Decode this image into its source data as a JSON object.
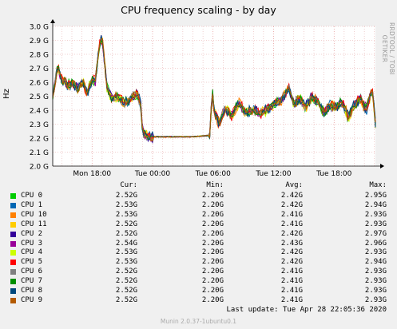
{
  "title": "CPU frequency scaling - by day",
  "side_credit": "RRDTOOL / TOBI OETIKER",
  "footer": {
    "last_update": "Last update: Tue Apr 28 22:05:36 2020",
    "munin": "Munin 2.0.37-1ubuntu0.1"
  },
  "legend": {
    "headers": {
      "cur": "Cur:",
      "min": "Min:",
      "avg": "Avg:",
      "max": "Max:"
    },
    "rows": [
      {
        "name": "CPU 0",
        "color": "#00cc00",
        "cur": "2.52G",
        "min": "2.20G",
        "avg": "2.42G",
        "max": "2.95G"
      },
      {
        "name": "CPU 1",
        "color": "#0066b3",
        "cur": "2.53G",
        "min": "2.20G",
        "avg": "2.42G",
        "max": "2.94G"
      },
      {
        "name": "CPU 10",
        "color": "#ff8000",
        "cur": "2.53G",
        "min": "2.20G",
        "avg": "2.41G",
        "max": "2.93G"
      },
      {
        "name": "CPU 11",
        "color": "#ffcc00",
        "cur": "2.52G",
        "min": "2.20G",
        "avg": "2.41G",
        "max": "2.93G"
      },
      {
        "name": "CPU 2",
        "color": "#330099",
        "cur": "2.52G",
        "min": "2.20G",
        "avg": "2.42G",
        "max": "2.97G"
      },
      {
        "name": "CPU 3",
        "color": "#990099",
        "cur": "2.54G",
        "min": "2.20G",
        "avg": "2.43G",
        "max": "2.96G"
      },
      {
        "name": "CPU 4",
        "color": "#ccff00",
        "cur": "2.53G",
        "min": "2.20G",
        "avg": "2.42G",
        "max": "2.93G"
      },
      {
        "name": "CPU 5",
        "color": "#ff0000",
        "cur": "2.53G",
        "min": "2.20G",
        "avg": "2.42G",
        "max": "2.94G"
      },
      {
        "name": "CPU 6",
        "color": "#808080",
        "cur": "2.52G",
        "min": "2.20G",
        "avg": "2.41G",
        "max": "2.93G"
      },
      {
        "name": "CPU 7",
        "color": "#008f00",
        "cur": "2.52G",
        "min": "2.20G",
        "avg": "2.41G",
        "max": "2.93G"
      },
      {
        "name": "CPU 8",
        "color": "#00487d",
        "cur": "2.52G",
        "min": "2.20G",
        "avg": "2.41G",
        "max": "2.93G"
      },
      {
        "name": "CPU 9",
        "color": "#b35a00",
        "cur": "2.52G",
        "min": "2.20G",
        "avg": "2.41G",
        "max": "2.93G"
      }
    ]
  },
  "chart_data": {
    "type": "line",
    "title": "CPU frequency scaling - by day",
    "ylabel": "Hz",
    "xlabel": "",
    "ylim": [
      2.0,
      3.0
    ],
    "y_unit": "G",
    "y_ticks": [
      "2.0 G",
      "2.1 G",
      "2.2 G",
      "2.3 G",
      "2.4 G",
      "2.5 G",
      "2.6 G",
      "2.7 G",
      "2.8 G",
      "2.9 G",
      "3.0 G"
    ],
    "x_ticks": [
      "Mon 18:00",
      "Tue 00:00",
      "Tue 06:00",
      "Tue 12:00",
      "Tue 18:00"
    ],
    "x_tick_hours": [
      18,
      24,
      30,
      36,
      42
    ],
    "xlim_hours": [
      14.1,
      46.1
    ],
    "grid": true,
    "legend_position": "bottom",
    "line_colors": [
      "#00cc00",
      "#0066b3",
      "#ff8000",
      "#ffcc00",
      "#330099",
      "#990099",
      "#ccff00",
      "#ff0000",
      "#808080",
      "#008f00",
      "#00487d",
      "#b35a00"
    ],
    "composite_x_hours": [
      14.1,
      14.6,
      15.0,
      15.6,
      16.0,
      16.6,
      17.1,
      17.5,
      18.0,
      18.3,
      18.7,
      19.0,
      19.5,
      20.0,
      20.6,
      21.2,
      21.8,
      22.4,
      22.8,
      23.0,
      23.4,
      24.0,
      26.0,
      28.0,
      29.7,
      29.9,
      30.1,
      30.6,
      31.2,
      31.8,
      32.6,
      33.2,
      34.0,
      34.8,
      35.6,
      36.2,
      36.8,
      37.5,
      38.0,
      38.6,
      39.2,
      39.8,
      40.4,
      41.0,
      41.6,
      42.2,
      42.8,
      43.4,
      44.0,
      44.6,
      45.2,
      45.8,
      46.1
    ],
    "composite_values": [
      2.5,
      2.72,
      2.62,
      2.58,
      2.6,
      2.55,
      2.6,
      2.52,
      2.62,
      2.6,
      2.85,
      2.92,
      2.55,
      2.48,
      2.5,
      2.45,
      2.48,
      2.52,
      2.46,
      2.25,
      2.22,
      2.21,
      2.21,
      2.21,
      2.22,
      2.56,
      2.4,
      2.3,
      2.42,
      2.36,
      2.45,
      2.38,
      2.4,
      2.38,
      2.42,
      2.45,
      2.48,
      2.56,
      2.45,
      2.48,
      2.42,
      2.5,
      2.46,
      2.38,
      2.44,
      2.42,
      2.46,
      2.35,
      2.44,
      2.48,
      2.4,
      2.55,
      2.3
    ]
  }
}
